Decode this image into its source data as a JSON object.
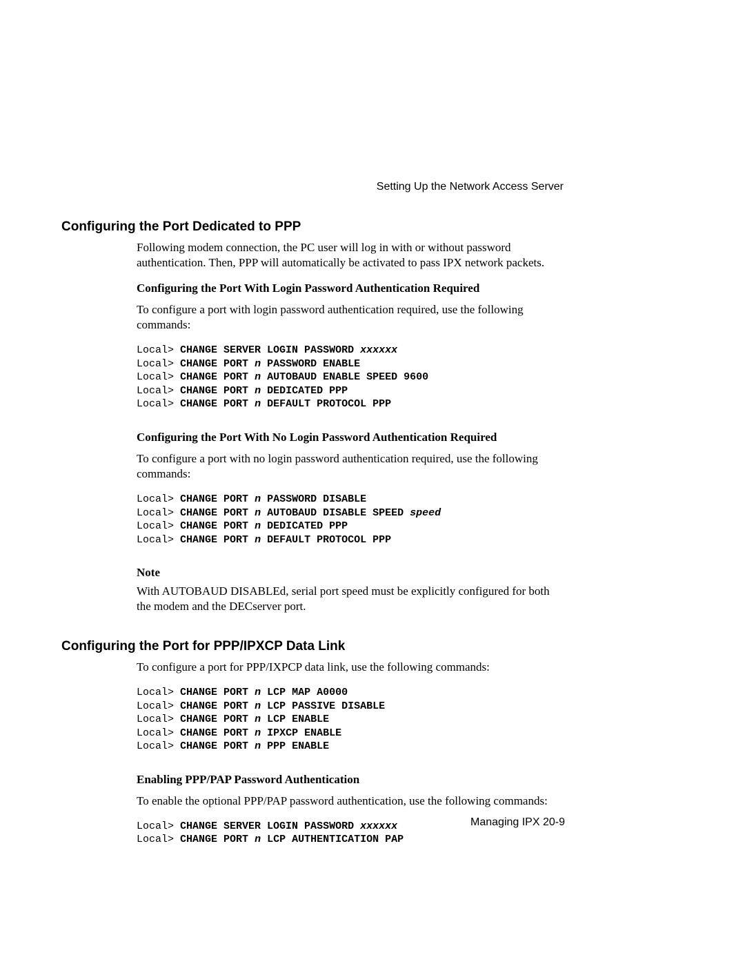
{
  "header": {
    "path": "Setting Up the Network Access Server"
  },
  "section1": {
    "heading": "Configuring the Port Dedicated to PPP",
    "intro": "Following modem connection, the PC user will log in with or without password authentication. Then, PPP will automatically be activated to pass IPX network packets.",
    "sub1": {
      "heading": "Configuring the Port With Login Password Authentication Required",
      "text": "To configure a port with login password authentication required, use the following commands:",
      "code": {
        "prompt": "Local>",
        "line1a": "CHANGE SERVER LOGIN PASSWORD",
        "line1b": "xxxxxx",
        "line2a": "CHANGE PORT",
        "line2b": "n",
        "line2c": "PASSWORD ENABLE",
        "line3a": "CHANGE PORT",
        "line3b": "n",
        "line3c": "AUTOBAUD ENABLE SPEED 9600",
        "line4a": "CHANGE PORT",
        "line4b": "n",
        "line4c": "DEDICATED PPP",
        "line5a": "CHANGE PORT",
        "line5b": "n",
        "line5c": "DEFAULT PROTOCOL PPP"
      }
    },
    "sub2": {
      "heading": "Configuring the Port With No Login Password Authentication Required",
      "text": "To configure a port with no login password authentication required, use the following commands:",
      "code": {
        "prompt": "Local>",
        "line1a": "CHANGE PORT",
        "line1b": "n",
        "line1c": "PASSWORD DISABLE",
        "line2a": "CHANGE PORT",
        "line2b": "n",
        "line2c": "AUTOBAUD DISABLE SPEED",
        "line2d": "speed",
        "line3a": "CHANGE PORT",
        "line3b": "n",
        "line3c": "DEDICATED PPP",
        "line4a": "CHANGE PORT",
        "line4b": "n",
        "line4c": "DEFAULT PROTOCOL PPP"
      }
    },
    "note": {
      "heading": "Note",
      "text": "With AUTOBAUD DISABLEd, serial port speed must be explicitly configured for both the modem and the DECserver port."
    }
  },
  "section2": {
    "heading": "Configuring the Port for PPP/IPXCP Data Link",
    "intro": "To configure a port for PPP/IXPCP data link, use the following commands:",
    "code": {
      "prompt": "Local>",
      "line1a": "CHANGE PORT",
      "line1b": "n",
      "line1c": "LCP MAP A0000",
      "line2a": "CHANGE PORT",
      "line2b": "n",
      "line2c": "LCP PASSIVE DISABLE",
      "line3a": "CHANGE PORT",
      "line3b": "n",
      "line3c": "LCP ENABLE",
      "line4a": "CHANGE PORT",
      "line4b": "n",
      "line4c": "IPXCP ENABLE",
      "line5a": "CHANGE PORT",
      "line5b": "n",
      "line5c": "PPP ENABLE"
    },
    "sub1": {
      "heading": "Enabling PPP/PAP Password Authentication",
      "text": "To enable the optional PPP/PAP password authentication, use the following commands:",
      "code": {
        "prompt": "Local>",
        "line1a": "CHANGE SERVER LOGIN PASSWORD",
        "line1b": "xxxxxx",
        "line2a": "CHANGE PORT",
        "line2b": "n",
        "line2c": "LCP AUTHENTICATION PAP"
      }
    }
  },
  "footer": {
    "text": "Managing IPX 20-9"
  }
}
